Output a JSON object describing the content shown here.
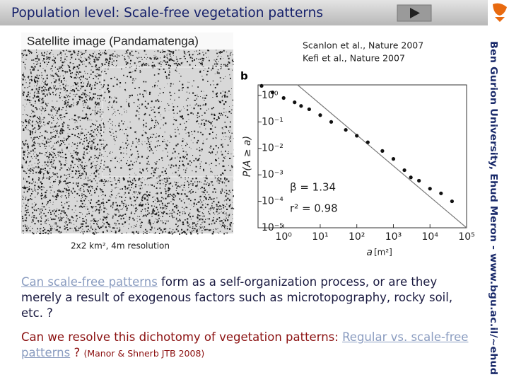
{
  "header": {
    "title": "Population level: Scale-free vegetation patterns"
  },
  "sidebar": {
    "credit": "Ben Gurion University, Ehud Meron - www.bgu.ac.il/~ehud"
  },
  "image": {
    "title": "Satellite image (Pandamatenga)",
    "caption": "2x2 km², 4m resolution"
  },
  "references": [
    "Scanlon et al., Nature 2007",
    "Kefi et al., Nature 2007"
  ],
  "chart_data": {
    "type": "scatter",
    "panel_label": "b",
    "ylabel": "P(A ≥ a)",
    "xlabel": "a",
    "xunit": "[m²]",
    "xlog": true,
    "ylog": true,
    "color": "#111111",
    "line_color": "#777777",
    "xlim": [
      0.2,
      100000
    ],
    "ylim": [
      1e-05,
      2.5
    ],
    "xticks": [
      {
        "value": 1,
        "label": "10⁰"
      },
      {
        "value": 10,
        "label": "10¹"
      },
      {
        "value": 100,
        "label": "10²"
      },
      {
        "value": 1000,
        "label": "10³"
      },
      {
        "value": 10000,
        "label": "10⁴"
      },
      {
        "value": 100000,
        "label": "10⁵"
      }
    ],
    "yticks": [
      {
        "value": 1e-05,
        "label": "10⁻⁵"
      },
      {
        "value": 0.0001,
        "label": "10⁻⁴"
      },
      {
        "value": 0.001,
        "label": "10⁻³"
      },
      {
        "value": 0.01,
        "label": "10⁻²"
      },
      {
        "value": 0.1,
        "label": "10⁻¹"
      },
      {
        "value": 1,
        "label": "10⁰"
      }
    ],
    "x": [
      0.25,
      0.5,
      1,
      2,
      3,
      5,
      10,
      20,
      50,
      100,
      200,
      500,
      1000,
      2000,
      3000,
      5000,
      10000,
      20000,
      40000
    ],
    "values": [
      2.3,
      1.3,
      0.8,
      0.55,
      0.4,
      0.3,
      0.18,
      0.1,
      0.05,
      0.03,
      0.017,
      0.008,
      0.004,
      0.0015,
      0.0008,
      0.0006,
      0.0003,
      0.0002,
      0.0001
    ],
    "fit_line": {
      "x": [
        2.4,
        100000
      ],
      "values": [
        2.5,
        1e-05
      ]
    },
    "annotations": [
      "β = 1.34",
      "r² = 0.98"
    ]
  },
  "text": {
    "p1": [
      {
        "text": "Can scale-free patterns",
        "link": true
      },
      {
        "text": " form as a self-organization process, or are they merely a result of exogenous factors such as microtopography, rocky soil, etc. ?",
        "link": false
      }
    ],
    "p2": [
      {
        "text": "Can we resolve this dichotomy of vegetation patterns:  ",
        "link": false
      },
      {
        "text": "Regular vs. scale-free patterns",
        "link": true
      },
      {
        "text": " ? ",
        "link": false
      }
    ],
    "p2_note": "(Manor & Shnerb JTB 2008)"
  }
}
